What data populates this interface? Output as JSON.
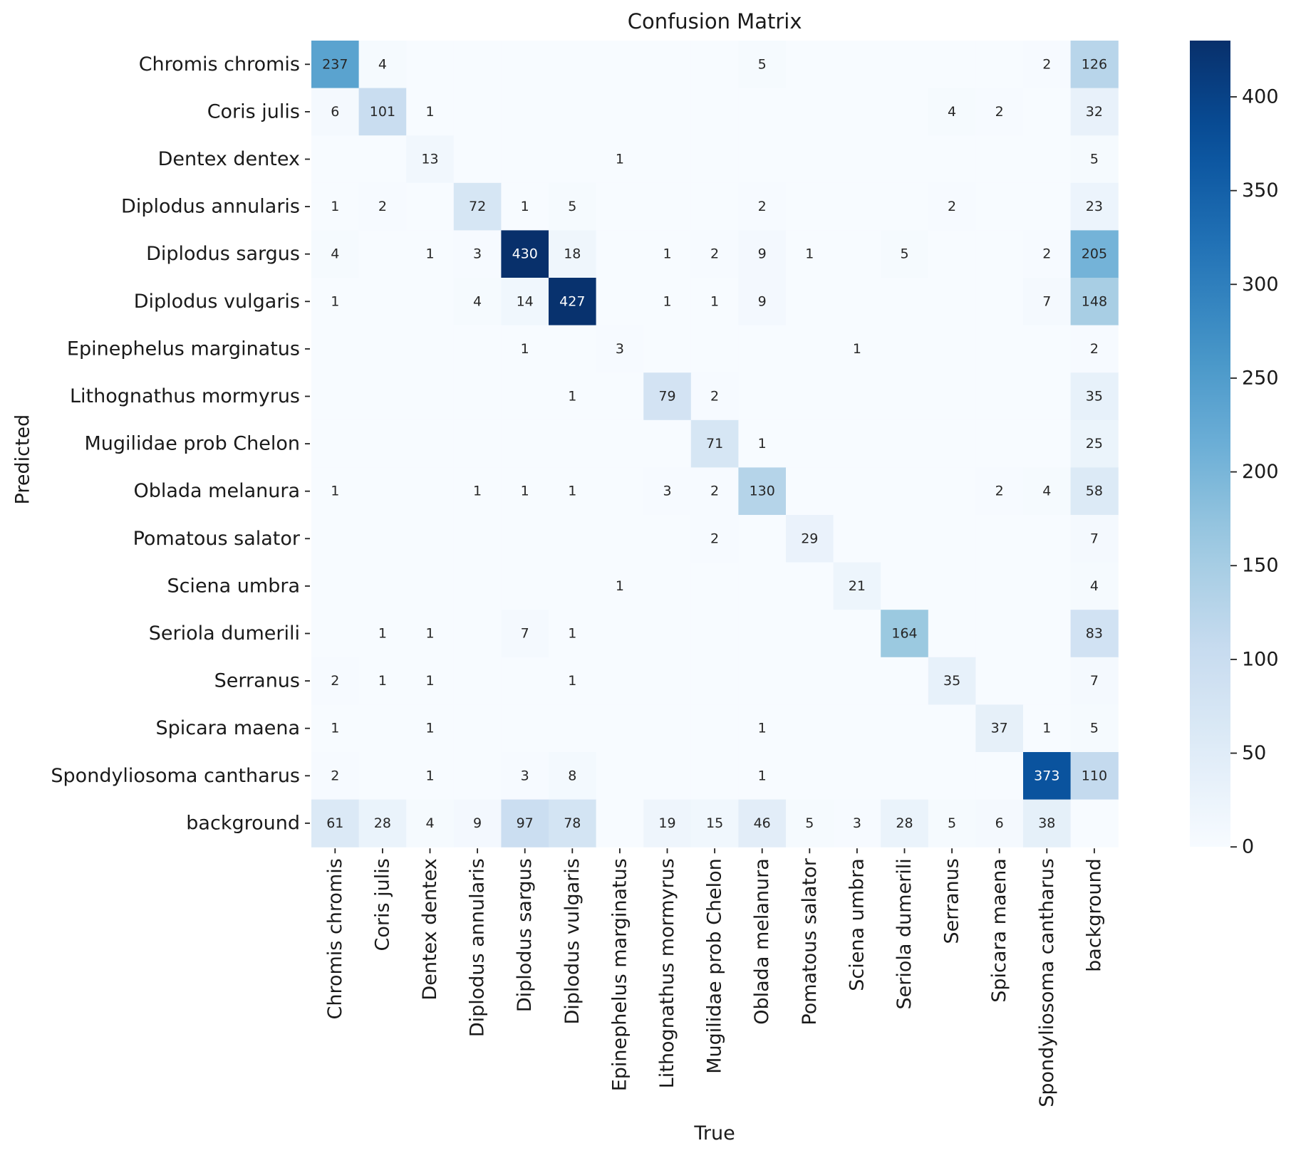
{
  "chart_data": {
    "type": "heatmap",
    "title": "Confusion Matrix",
    "xlabel": "True",
    "ylabel": "Predicted",
    "categories": [
      "Chromis chromis",
      "Coris julis",
      "Dentex dentex",
      "Diplodus annularis",
      "Diplodus sargus",
      "Diplodus vulgaris",
      "Epinephelus marginatus",
      "Lithognathus mormyrus",
      "Mugilidae prob Chelon",
      "Oblada melanura",
      "Pomatous salator",
      "Sciena umbra",
      "Seriola dumerili",
      "Serranus",
      "Spicara maena",
      "Spondyliosoma cantharus",
      "background"
    ],
    "matrix": [
      [
        237,
        4,
        0,
        0,
        0,
        0,
        0,
        0,
        0,
        5,
        0,
        0,
        0,
        0,
        0,
        2,
        126
      ],
      [
        6,
        101,
        1,
        0,
        0,
        0,
        0,
        0,
        0,
        0,
        0,
        0,
        0,
        4,
        2,
        0,
        32
      ],
      [
        0,
        0,
        13,
        0,
        0,
        0,
        1,
        0,
        0,
        0,
        0,
        0,
        0,
        0,
        0,
        0,
        5
      ],
      [
        1,
        2,
        0,
        72,
        1,
        5,
        0,
        0,
        0,
        2,
        0,
        0,
        0,
        2,
        0,
        0,
        23
      ],
      [
        4,
        0,
        1,
        3,
        430,
        18,
        0,
        1,
        2,
        9,
        1,
        0,
        5,
        0,
        0,
        2,
        205
      ],
      [
        1,
        0,
        0,
        4,
        14,
        427,
        0,
        1,
        1,
        9,
        0,
        0,
        0,
        0,
        0,
        7,
        148
      ],
      [
        0,
        0,
        0,
        0,
        1,
        0,
        3,
        0,
        0,
        0,
        0,
        1,
        0,
        0,
        0,
        0,
        2
      ],
      [
        0,
        0,
        0,
        0,
        0,
        1,
        0,
        79,
        2,
        0,
        0,
        0,
        0,
        0,
        0,
        0,
        35
      ],
      [
        0,
        0,
        0,
        0,
        0,
        0,
        0,
        0,
        71,
        1,
        0,
        0,
        0,
        0,
        0,
        0,
        25
      ],
      [
        1,
        0,
        0,
        1,
        1,
        1,
        0,
        3,
        2,
        130,
        0,
        0,
        0,
        0,
        2,
        4,
        58
      ],
      [
        0,
        0,
        0,
        0,
        0,
        0,
        0,
        0,
        2,
        0,
        29,
        0,
        0,
        0,
        0,
        0,
        7
      ],
      [
        0,
        0,
        0,
        0,
        0,
        0,
        1,
        0,
        0,
        0,
        0,
        21,
        0,
        0,
        0,
        0,
        4
      ],
      [
        0,
        1,
        1,
        0,
        7,
        1,
        0,
        0,
        0,
        0,
        0,
        0,
        164,
        0,
        0,
        0,
        83
      ],
      [
        2,
        1,
        1,
        0,
        0,
        1,
        0,
        0,
        0,
        0,
        0,
        0,
        0,
        35,
        0,
        0,
        7
      ],
      [
        1,
        0,
        1,
        0,
        0,
        0,
        0,
        0,
        0,
        1,
        0,
        0,
        0,
        0,
        37,
        1,
        5
      ],
      [
        2,
        0,
        1,
        0,
        3,
        8,
        0,
        0,
        0,
        1,
        0,
        0,
        0,
        0,
        0,
        373,
        110
      ],
      [
        61,
        28,
        4,
        9,
        97,
        78,
        0,
        19,
        15,
        46,
        5,
        3,
        28,
        5,
        6,
        38,
        0
      ]
    ],
    "zero_cells_blank": true,
    "colormap": "Blues",
    "color_range": [
      0,
      430
    ],
    "colorbar_ticks": [
      0,
      50,
      100,
      150,
      200,
      250,
      300,
      350,
      400
    ],
    "grid": false
  }
}
